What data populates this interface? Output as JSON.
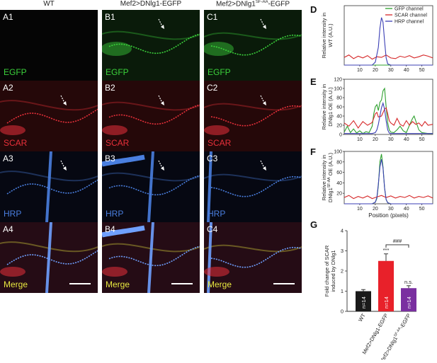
{
  "columns": {
    "wt": "WT",
    "ov": "Mef2>DNlg1-EGFP",
    "mut_prefix": "Mef2>DNlg1",
    "mut_sup": "SF-AA",
    "mut_suffix": "-EGFP"
  },
  "panels": [
    {
      "label": "A1",
      "channel": "EGFP",
      "col": 0,
      "row": 0
    },
    {
      "label": "B1",
      "channel": "EGFP",
      "col": 1,
      "row": 0
    },
    {
      "label": "C1",
      "channel": "EGFP",
      "col": 2,
      "row": 0
    },
    {
      "label": "A2",
      "channel": "SCAR",
      "col": 0,
      "row": 1
    },
    {
      "label": "B2",
      "channel": "SCAR",
      "col": 1,
      "row": 1
    },
    {
      "label": "C2",
      "channel": "SCAR",
      "col": 2,
      "row": 1
    },
    {
      "label": "A3",
      "channel": "HRP",
      "col": 0,
      "row": 2
    },
    {
      "label": "B3",
      "channel": "HRP",
      "col": 1,
      "row": 2
    },
    {
      "label": "C3",
      "channel": "HRP",
      "col": 2,
      "row": 2
    },
    {
      "label": "A4",
      "channel": "Merge",
      "col": 0,
      "row": 3
    },
    {
      "label": "B4",
      "channel": "Merge",
      "col": 1,
      "row": 3
    },
    {
      "label": "C4",
      "channel": "Merge",
      "col": 2,
      "row": 3
    }
  ],
  "channel_colors": {
    "EGFP": "#3bd23b",
    "SCAR": "#e8303a",
    "HRP": "#4a7fe0",
    "Merge": "#e8e840"
  },
  "letters": {
    "D": "D",
    "E": "E",
    "F": "F",
    "G": "G"
  },
  "chart_data": [
    {
      "id": "D",
      "type": "line",
      "ylabel": [
        "Relative intensity in",
        "WT (A.U.)"
      ],
      "xlim": [
        0,
        57
      ],
      "ylim": [
        0,
        100
      ],
      "yticks": [],
      "xticks": [
        10,
        20,
        30,
        40,
        50
      ],
      "legend": [
        "GFP channel",
        "SCAR channel",
        "HRP channel"
      ],
      "legend_position": "top-right",
      "series": [
        {
          "name": "GFP channel",
          "color": "#2ca02c",
          "x": [
            0,
            57
          ],
          "y": [
            0,
            0
          ]
        },
        {
          "name": "SCAR channel",
          "color": "#d62728",
          "x": [
            0,
            3,
            6,
            9,
            12,
            15,
            18,
            21,
            24,
            27,
            30,
            33,
            36,
            39,
            42,
            45,
            48,
            51,
            54,
            57
          ],
          "y": [
            13,
            17,
            11,
            15,
            12,
            16,
            10,
            14,
            13,
            17,
            12,
            11,
            15,
            13,
            16,
            12,
            14,
            17,
            15,
            12
          ]
        },
        {
          "name": "HRP channel",
          "color": "#3b3fb5",
          "x": [
            0,
            18,
            20,
            22,
            23,
            24,
            25,
            26,
            27,
            28,
            30,
            57
          ],
          "y": [
            0,
            0,
            5,
            30,
            62,
            80,
            72,
            40,
            12,
            2,
            0,
            0
          ]
        }
      ]
    },
    {
      "id": "E",
      "type": "line",
      "ylabel": [
        "Relative intensity in",
        "DNlg1 OE (A.U.)"
      ],
      "xlim": [
        0,
        57
      ],
      "ylim": [
        0,
        120
      ],
      "yticks": [
        0,
        20,
        40,
        60,
        80,
        100,
        120
      ],
      "xticks": [
        10,
        20,
        30,
        40,
        50
      ],
      "series": [
        {
          "name": "GFP channel",
          "color": "#2ca02c",
          "x": [
            0,
            2,
            4,
            6,
            8,
            10,
            12,
            14,
            16,
            18,
            19,
            20,
            21,
            22,
            23,
            24,
            25,
            26,
            27,
            28,
            29,
            30,
            32,
            34,
            36,
            38,
            40,
            42,
            44,
            45,
            46,
            48,
            50,
            52,
            54,
            57
          ],
          "y": [
            5,
            18,
            4,
            12,
            3,
            8,
            2,
            6,
            4,
            18,
            45,
            60,
            65,
            52,
            70,
            75,
            95,
            100,
            60,
            25,
            10,
            5,
            4,
            10,
            18,
            8,
            4,
            20,
            35,
            40,
            30,
            10,
            4,
            3,
            2,
            2
          ]
        },
        {
          "name": "SCAR channel",
          "color": "#d62728",
          "x": [
            0,
            3,
            6,
            9,
            12,
            15,
            18,
            20,
            21,
            22,
            24,
            26,
            27,
            28,
            29,
            30,
            32,
            34,
            36,
            38,
            40,
            42,
            44,
            46,
            48,
            50,
            52,
            54,
            57
          ],
          "y": [
            25,
            18,
            30,
            14,
            28,
            20,
            26,
            45,
            48,
            38,
            40,
            55,
            58,
            45,
            30,
            25,
            20,
            35,
            22,
            18,
            30,
            20,
            28,
            22,
            25,
            18,
            28,
            20,
            22
          ]
        },
        {
          "name": "HRP channel",
          "color": "#3b3fb5",
          "x": [
            0,
            18,
            20,
            21,
            22,
            23,
            24,
            25,
            26,
            27,
            28,
            29,
            30,
            57
          ],
          "y": [
            2,
            2,
            4,
            10,
            22,
            40,
            58,
            68,
            55,
            30,
            10,
            3,
            2,
            2
          ]
        }
      ]
    },
    {
      "id": "F",
      "type": "line",
      "ylabel": [
        "Relative intensity in",
        "DNlg1",
        "SF-AA",
        " OE (A.U.)"
      ],
      "xlim": [
        0,
        57
      ],
      "ylim": [
        0,
        100
      ],
      "yticks": [
        20,
        40,
        60,
        80,
        100
      ],
      "xticks": [
        10,
        20,
        30,
        40,
        50
      ],
      "xlabel": "Position (pixels)",
      "series": [
        {
          "name": "GFP channel",
          "color": "#2ca02c",
          "x": [
            0,
            18,
            20,
            21,
            22,
            23,
            24,
            25,
            26,
            27,
            28,
            30,
            57
          ],
          "y": [
            0,
            0,
            3,
            10,
            35,
            80,
            95,
            70,
            30,
            8,
            2,
            0,
            0
          ]
        },
        {
          "name": "SCAR channel",
          "color": "#d62728",
          "x": [
            0,
            3,
            6,
            9,
            12,
            15,
            18,
            21,
            24,
            27,
            30,
            33,
            36,
            39,
            42,
            45,
            48,
            51,
            54,
            57
          ],
          "y": [
            12,
            16,
            10,
            14,
            11,
            15,
            10,
            13,
            16,
            12,
            15,
            11,
            14,
            12,
            16,
            11,
            14,
            12,
            15,
            11
          ]
        },
        {
          "name": "HRP channel",
          "color": "#3b3fb5",
          "x": [
            0,
            18,
            20,
            21,
            22,
            23,
            24,
            25,
            26,
            27,
            28,
            30,
            57
          ],
          "y": [
            0,
            0,
            3,
            12,
            38,
            70,
            85,
            68,
            30,
            8,
            2,
            0,
            0
          ]
        }
      ]
    },
    {
      "id": "G",
      "type": "bar",
      "ylabel": [
        "Fold change of SCAR",
        "induced by DNlg1"
      ],
      "ylim": [
        0,
        4
      ],
      "yticks": [
        0,
        1,
        2,
        3,
        4
      ],
      "categories": [
        "WT",
        "Mef2>DNlg1-EGFP",
        "Mef2>DNlg1SF-AA-EGFP"
      ],
      "category_parts": [
        [
          "WT",
          "",
          ""
        ],
        [
          "Mef2>DNlg1-EGFP",
          "",
          ""
        ],
        [
          "Mef2>DNlg1",
          "SF-AA",
          "-EGFP"
        ]
      ],
      "values": [
        1.0,
        2.5,
        1.15
      ],
      "errors": [
        0.08,
        0.35,
        0.12
      ],
      "colors": [
        "#1a1a1a",
        "#e8212a",
        "#7a2fa0"
      ],
      "n_labels": [
        "n=14",
        "n=14",
        "n=14"
      ],
      "annotations": [
        "",
        "***",
        "n.s."
      ],
      "bracket": "###"
    }
  ]
}
